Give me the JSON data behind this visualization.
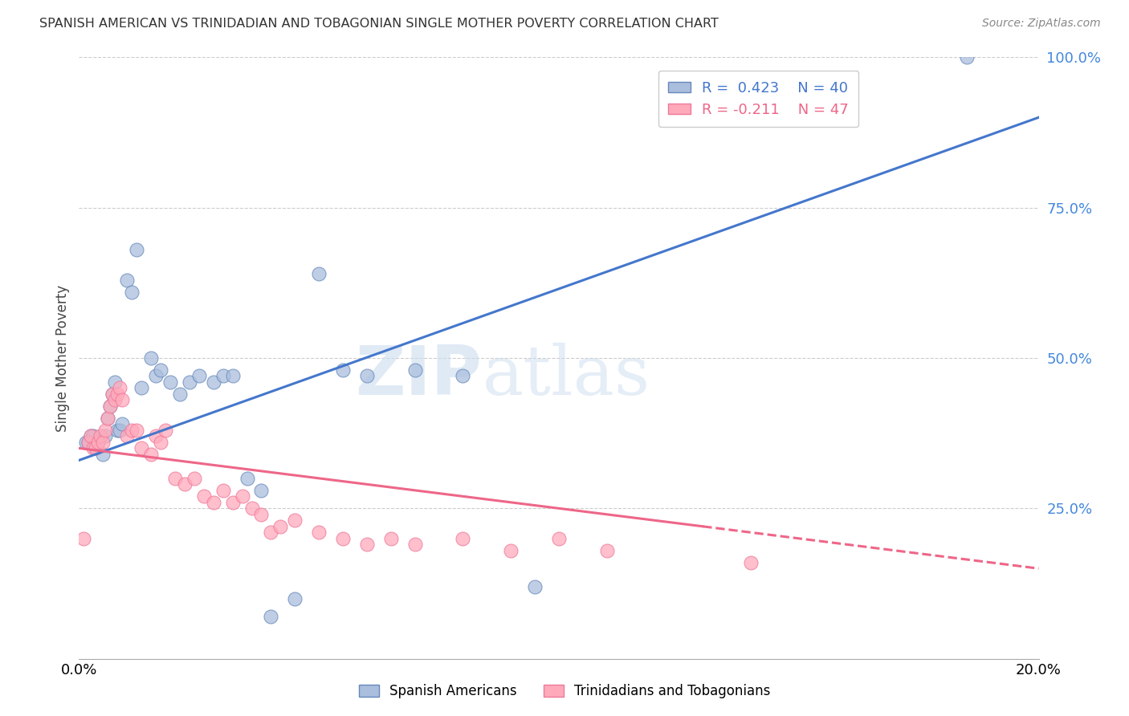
{
  "title": "SPANISH AMERICAN VS TRINIDADIAN AND TOBAGONIAN SINGLE MOTHER POVERTY CORRELATION CHART",
  "source": "Source: ZipAtlas.com",
  "ylabel": "Single Mother Poverty",
  "xmin": 0.0,
  "xmax": 20.0,
  "ymin": 0.0,
  "ymax": 100.0,
  "yticks": [
    25.0,
    50.0,
    75.0,
    100.0
  ],
  "blue_color": "#AABEDD",
  "pink_color": "#FFAABB",
  "blue_edge_color": "#6688BB",
  "pink_edge_color": "#EE7799",
  "blue_line_color": "#4477CC",
  "pink_line_color": "#EE6688",
  "blue_R": 0.423,
  "blue_N": 40,
  "pink_R": -0.211,
  "pink_N": 47,
  "blue_scatter_x": [
    0.15,
    0.2,
    0.25,
    0.3,
    0.35,
    0.4,
    0.5,
    0.55,
    0.6,
    0.65,
    0.7,
    0.75,
    0.8,
    0.85,
    0.9,
    1.0,
    1.1,
    1.2,
    1.3,
    1.5,
    1.6,
    1.7,
    1.9,
    2.1,
    2.3,
    2.5,
    2.8,
    3.0,
    3.2,
    3.5,
    3.8,
    4.0,
    4.5,
    5.0,
    5.5,
    6.0,
    7.0,
    8.0,
    9.5,
    18.5
  ],
  "blue_scatter_y": [
    36.0,
    36.0,
    37.0,
    37.0,
    35.0,
    36.0,
    34.0,
    37.0,
    40.0,
    42.0,
    44.0,
    46.0,
    38.0,
    38.0,
    39.0,
    63.0,
    61.0,
    68.0,
    45.0,
    50.0,
    47.0,
    48.0,
    46.0,
    44.0,
    46.0,
    47.0,
    46.0,
    47.0,
    47.0,
    30.0,
    28.0,
    7.0,
    10.0,
    64.0,
    48.0,
    47.0,
    48.0,
    47.0,
    12.0,
    100.0
  ],
  "pink_scatter_x": [
    0.1,
    0.2,
    0.25,
    0.3,
    0.35,
    0.4,
    0.45,
    0.5,
    0.55,
    0.6,
    0.65,
    0.7,
    0.75,
    0.8,
    0.85,
    0.9,
    1.0,
    1.1,
    1.2,
    1.3,
    1.5,
    1.6,
    1.7,
    1.8,
    2.0,
    2.2,
    2.4,
    2.6,
    2.8,
    3.0,
    3.2,
    3.4,
    3.6,
    3.8,
    4.0,
    4.2,
    4.5,
    5.0,
    5.5,
    6.0,
    6.5,
    7.0,
    8.0,
    9.0,
    10.0,
    11.0,
    14.0
  ],
  "pink_scatter_y": [
    20.0,
    36.0,
    37.0,
    35.0,
    35.0,
    36.0,
    37.0,
    36.0,
    38.0,
    40.0,
    42.0,
    44.0,
    43.0,
    44.0,
    45.0,
    43.0,
    37.0,
    38.0,
    38.0,
    35.0,
    34.0,
    37.0,
    36.0,
    38.0,
    30.0,
    29.0,
    30.0,
    27.0,
    26.0,
    28.0,
    26.0,
    27.0,
    25.0,
    24.0,
    21.0,
    22.0,
    23.0,
    21.0,
    20.0,
    19.0,
    20.0,
    19.0,
    20.0,
    18.0,
    20.0,
    18.0,
    16.0
  ],
  "blue_line_x0": 0.0,
  "blue_line_y0": 33.0,
  "blue_line_x1": 20.0,
  "blue_line_y1": 90.0,
  "pink_line_x0": 0.0,
  "pink_line_y0": 35.0,
  "pink_line_x1": 20.0,
  "pink_line_y1": 15.0,
  "pink_solid_end_x": 13.0,
  "watermark_zip": "ZIP",
  "watermark_atlas": "atlas",
  "background_color": "#FFFFFF",
  "grid_color": "#CCCCCC",
  "right_tick_color": "#4488DD",
  "bottom_legend_labels": [
    "Spanish Americans",
    "Trinidadians and Tobagonians"
  ]
}
